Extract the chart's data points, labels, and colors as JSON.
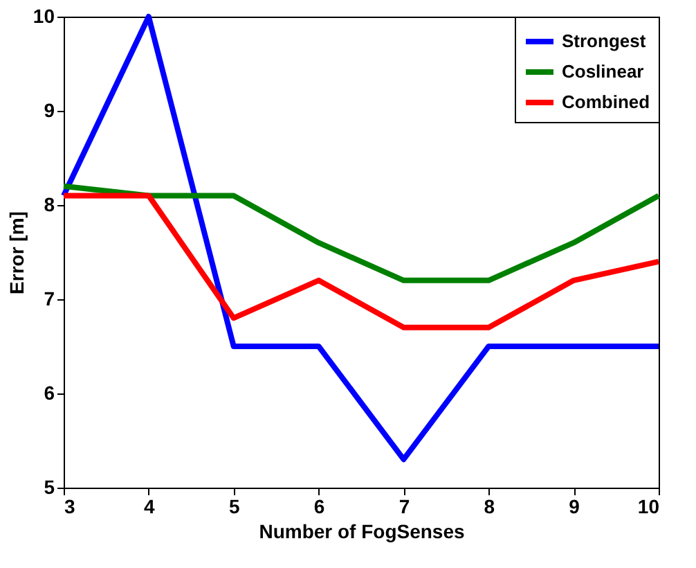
{
  "chart_data": {
    "type": "line",
    "xlabel": "Number of FogSenses",
    "ylabel": "Error [m]",
    "x": [
      3,
      4,
      5,
      6,
      7,
      8,
      9,
      10
    ],
    "series": [
      {
        "name": "Strongest",
        "color": "#0000ff",
        "values": [
          8.1,
          10,
          6.5,
          6.5,
          5.3,
          6.5,
          6.5,
          6.5
        ]
      },
      {
        "name": "Coslinear",
        "color": "#008000",
        "values": [
          8.2,
          8.1,
          8.1,
          7.6,
          7.2,
          7.2,
          7.6,
          8.1
        ]
      },
      {
        "name": "Combined",
        "color": "#ff0000",
        "values": [
          8.1,
          8.1,
          6.8,
          7.2,
          6.7,
          6.7,
          7.2,
          7.4
        ]
      }
    ],
    "xlim": [
      3,
      10
    ],
    "xticks": [
      3,
      4,
      5,
      6,
      7,
      8,
      9,
      10
    ],
    "ylim": [
      5,
      10
    ],
    "yticks": [
      5,
      6,
      7,
      8,
      9,
      10
    ],
    "grid": false,
    "legend": "top right",
    "marker": "none",
    "line_style": "solid"
  }
}
